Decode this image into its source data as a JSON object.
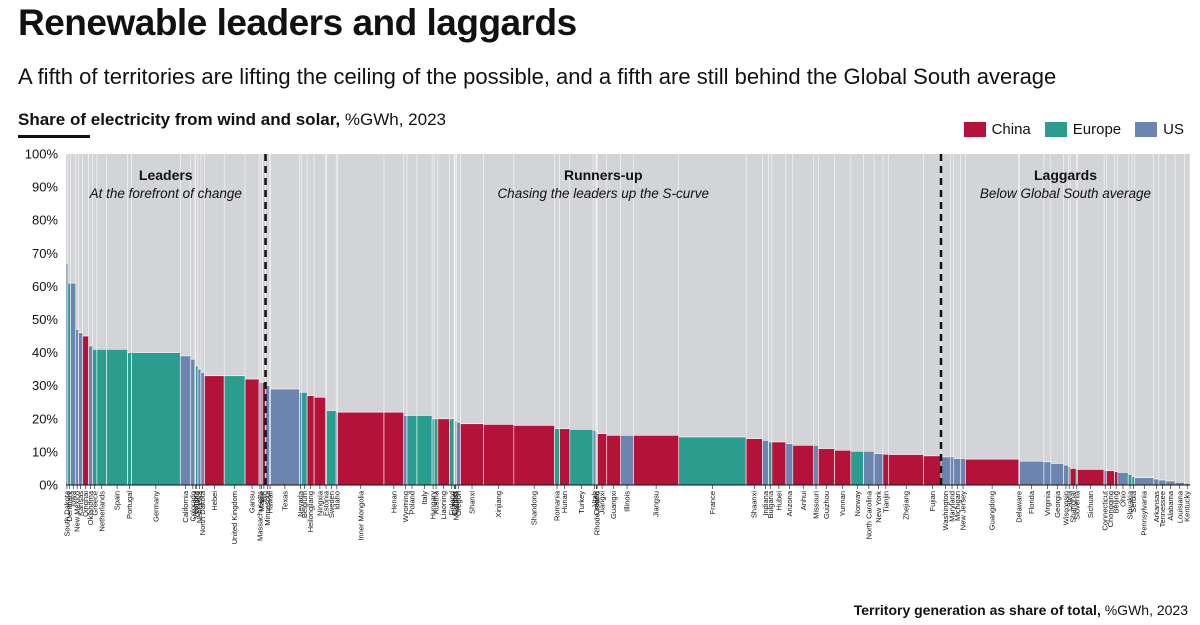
{
  "title": "Renewable leaders and laggards",
  "subtitle": "A fifth of territories are lifting the ceiling of the possible, and a fifth are still behind the Global South average",
  "heading_bold": "Share of electricity from wind and solar,",
  "heading_rest": " %GWh, 2023",
  "footer_bold": "Territory generation as share of total,",
  "footer_rest": " %GWh, 2023",
  "legend": [
    {
      "label": "China",
      "color": "#b5123a"
    },
    {
      "label": "Europe",
      "color": "#2a9d8f"
    },
    {
      "label": "US",
      "color": "#6b84b0"
    }
  ],
  "groups": [
    {
      "name": "Leaders",
      "desc": "At the forefront of change"
    },
    {
      "name": "Runners-up",
      "desc": "Chasing the leaders up the S-curve"
    },
    {
      "name": "Laggards",
      "desc": "Below Global South average"
    }
  ],
  "chart_data": {
    "type": "bar",
    "xlabel": "Territory generation as share of total, %GWh, 2023",
    "ylabel": "Share of electricity from wind and solar, %GWh, 2023",
    "ylim": [
      0,
      100
    ],
    "yticks": [
      "0%",
      "10%",
      "20%",
      "30%",
      "40%",
      "50%",
      "60%",
      "70%",
      "80%",
      "90%",
      "100%"
    ],
    "boundaries_after": [
      "Jilin",
      "Fujian"
    ],
    "series": [
      {
        "name": "South Dakota",
        "region": "US",
        "value": 67,
        "share": 0.08
      },
      {
        "name": "Denmark",
        "region": "Europe",
        "value": 61,
        "share": 0.12
      },
      {
        "name": "Iowa",
        "region": "US",
        "value": 61,
        "share": 0.22
      },
      {
        "name": "New Mexico",
        "region": "US",
        "value": 47,
        "share": 0.12
      },
      {
        "name": "Kansas",
        "region": "US",
        "value": 46,
        "share": 0.18
      },
      {
        "name": "Qinghai",
        "region": "China",
        "value": 45,
        "share": 0.25
      },
      {
        "name": "Oklahoma",
        "region": "US",
        "value": 42,
        "share": 0.18
      },
      {
        "name": "Greece",
        "region": "Europe",
        "value": 41,
        "share": 0.18
      },
      {
        "name": "Netherlands",
        "region": "Europe",
        "value": 41,
        "share": 0.42
      },
      {
        "name": "Spain",
        "region": "Europe",
        "value": 41,
        "share": 0.9
      },
      {
        "name": "Portugal",
        "region": "Europe",
        "value": 40,
        "share": 0.17
      },
      {
        "name": "Germany",
        "region": "Europe",
        "value": 40,
        "share": 2.1
      },
      {
        "name": "California",
        "region": "US",
        "value": 39,
        "share": 0.45
      },
      {
        "name": "Colorado",
        "region": "US",
        "value": 38,
        "share": 0.18
      },
      {
        "name": "Vermont",
        "region": "US",
        "value": 37,
        "share": 0.03
      },
      {
        "name": "Ireland",
        "region": "Europe",
        "value": 36,
        "share": 0.1
      },
      {
        "name": "Nebraska",
        "region": "US",
        "value": 35,
        "share": 0.13
      },
      {
        "name": "North Dakota",
        "region": "US",
        "value": 34,
        "share": 0.15
      },
      {
        "name": "Hebei",
        "region": "China",
        "value": 33,
        "share": 0.85
      },
      {
        "name": "United Kingdom",
        "region": "Europe",
        "value": 33,
        "share": 0.9
      },
      {
        "name": "Gansu",
        "region": "China",
        "value": 32,
        "share": 0.6
      },
      {
        "name": "Massachusetts",
        "region": "US",
        "value": 31,
        "share": 0.08
      },
      {
        "name": "Maine",
        "region": "US",
        "value": 31,
        "share": 0.06
      },
      {
        "name": "Jilin",
        "region": "China",
        "value": 31,
        "share": 0.14
      },
      {
        "name": "Minnesota",
        "region": "US",
        "value": 30,
        "share": 0.18
      },
      {
        "name": "Hawaii",
        "region": "US",
        "value": 29,
        "share": 0.03
      },
      {
        "name": "Texas",
        "region": "US",
        "value": 29,
        "share": 1.25
      },
      {
        "name": "Nevada",
        "region": "US",
        "value": 28,
        "share": 0.1
      },
      {
        "name": "Belgium",
        "region": "Europe",
        "value": 28,
        "share": 0.23
      },
      {
        "name": "Heilongjiang",
        "region": "China",
        "value": 27,
        "share": 0.3
      },
      {
        "name": "Ningxia",
        "region": "China",
        "value": 26.5,
        "share": 0.5
      },
      {
        "name": "Estonia",
        "region": "Europe",
        "value": 26,
        "share": 0.03
      },
      {
        "name": "Sweden",
        "region": "Europe",
        "value": 22.5,
        "share": 0.42
      },
      {
        "name": "Idaho",
        "region": "US",
        "value": 22,
        "share": 0.06
      },
      {
        "name": "Inner Mongolia",
        "region": "China",
        "value": 22,
        "share": 2.0
      },
      {
        "name": "Henan",
        "region": "China",
        "value": 22,
        "share": 0.85
      },
      {
        "name": "Wyoming",
        "region": "US",
        "value": 21,
        "share": 0.14
      },
      {
        "name": "Poland",
        "region": "Europe",
        "value": 21,
        "share": 0.43
      },
      {
        "name": "Italy",
        "region": "Europe",
        "value": 21,
        "share": 0.65
      },
      {
        "name": "Hungary",
        "region": "Europe",
        "value": 20,
        "share": 0.09
      },
      {
        "name": "Austria",
        "region": "Europe",
        "value": 20,
        "share": 0.16
      },
      {
        "name": "Liaoning",
        "region": "China",
        "value": 20,
        "share": 0.5
      },
      {
        "name": "Finland",
        "region": "Europe",
        "value": 20,
        "share": 0.2
      },
      {
        "name": "Tibet",
        "region": "China",
        "value": 19.5,
        "share": 0.03
      },
      {
        "name": "Cyprus",
        "region": "Europe",
        "value": 19.5,
        "share": 0.01
      },
      {
        "name": "Montana",
        "region": "US",
        "value": 19.5,
        "share": 0.07
      },
      {
        "name": "Oregon",
        "region": "US",
        "value": 19,
        "share": 0.16
      },
      {
        "name": "Shanxi",
        "region": "China",
        "value": 18.5,
        "share": 1.0
      },
      {
        "name": "Xinjiang",
        "region": "China",
        "value": 18.3,
        "share": 1.3
      },
      {
        "name": "Shandong",
        "region": "China",
        "value": 18,
        "share": 1.75
      },
      {
        "name": "Romania",
        "region": "Europe",
        "value": 17,
        "share": 0.22
      },
      {
        "name": "Hunan",
        "region": "China",
        "value": 17,
        "share": 0.44
      },
      {
        "name": "Turkey",
        "region": "Europe",
        "value": 16.8,
        "share": 1.0
      },
      {
        "name": "Utah",
        "region": "US",
        "value": 16.5,
        "share": 0.12
      },
      {
        "name": "Croatia",
        "region": "Europe",
        "value": 16.2,
        "share": 0.04
      },
      {
        "name": "Rhode Island",
        "region": "US",
        "value": 16,
        "share": 0.03
      },
      {
        "name": "Jiangxi",
        "region": "China",
        "value": 15.5,
        "share": 0.4
      },
      {
        "name": "Guangxi",
        "region": "China",
        "value": 15,
        "share": 0.6
      },
      {
        "name": "Illinois",
        "region": "US",
        "value": 15,
        "share": 0.55
      },
      {
        "name": "Jiangsu",
        "region": "China",
        "value": 15,
        "share": 1.95
      },
      {
        "name": "France",
        "region": "Europe",
        "value": 14.5,
        "share": 2.9
      },
      {
        "name": "Shaanxi",
        "region": "China",
        "value": 14,
        "share": 0.7
      },
      {
        "name": "Indiana",
        "region": "US",
        "value": 13.5,
        "share": 0.27
      },
      {
        "name": "Bulgaria",
        "region": "Europe",
        "value": 13,
        "share": 0.14
      },
      {
        "name": "Hubei",
        "region": "China",
        "value": 13,
        "share": 0.6
      },
      {
        "name": "Arizona",
        "region": "US",
        "value": 12.5,
        "share": 0.3
      },
      {
        "name": "Anhui",
        "region": "China",
        "value": 12,
        "share": 0.9
      },
      {
        "name": "Missouri",
        "region": "US",
        "value": 12,
        "share": 0.2
      },
      {
        "name": "Guizhou",
        "region": "China",
        "value": 11,
        "share": 0.7
      },
      {
        "name": "Yunnan",
        "region": "China",
        "value": 10.5,
        "share": 0.7
      },
      {
        "name": "Norway",
        "region": "Europe",
        "value": 10.2,
        "share": 0.55
      },
      {
        "name": "North Carolina",
        "region": "US",
        "value": 10.2,
        "share": 0.45
      },
      {
        "name": "New York",
        "region": "US",
        "value": 9.5,
        "share": 0.38
      },
      {
        "name": "Tianjin",
        "region": "China",
        "value": 9.3,
        "share": 0.25
      },
      {
        "name": "Zhejiang",
        "region": "China",
        "value": 9.2,
        "share": 1.5
      },
      {
        "name": "Fujian",
        "region": "China",
        "value": 8.8,
        "share": 0.75
      },
      {
        "name": "Washington",
        "region": "US",
        "value": 8.5,
        "share": 0.4
      },
      {
        "name": "Maryland",
        "region": "US",
        "value": 8.5,
        "share": 0.15
      },
      {
        "name": "Michigan",
        "region": "US",
        "value": 8,
        "share": 0.3
      },
      {
        "name": "New Jersey",
        "region": "US",
        "value": 8,
        "share": 0.2
      },
      {
        "name": "Guangdong",
        "region": "China",
        "value": 7.8,
        "share": 2.3
      },
      {
        "name": "Delaware",
        "region": "US",
        "value": 7.5,
        "share": 0.03
      },
      {
        "name": "Florida",
        "region": "US",
        "value": 7.2,
        "share": 1.05
      },
      {
        "name": "Virginia",
        "region": "US",
        "value": 7,
        "share": 0.3
      },
      {
        "name": "Georgia",
        "region": "US",
        "value": 6.5,
        "share": 0.55
      },
      {
        "name": "Wisconsin",
        "region": "US",
        "value": 6,
        "share": 0.2
      },
      {
        "name": "Latvia",
        "region": "Europe",
        "value": 5.5,
        "share": 0.08
      },
      {
        "name": "Shanghai",
        "region": "China",
        "value": 5,
        "share": 0.26
      },
      {
        "name": "Slovenia",
        "region": "Europe",
        "value": 4.8,
        "share": 0.05
      },
      {
        "name": "Sichuan",
        "region": "China",
        "value": 4.7,
        "share": 1.15
      },
      {
        "name": "Connecticut",
        "region": "US",
        "value": 4.5,
        "share": 0.1
      },
      {
        "name": "Chongqing",
        "region": "China",
        "value": 4.3,
        "share": 0.35
      },
      {
        "name": "Beijing",
        "region": "China",
        "value": 4,
        "share": 0.14
      },
      {
        "name": "Ohio",
        "region": "US",
        "value": 3.8,
        "share": 0.45
      },
      {
        "name": "Slovakia",
        "region": "Europe",
        "value": 3.2,
        "share": 0.16
      },
      {
        "name": "Serbia",
        "region": "Europe",
        "value": 2.5,
        "share": 0.12
      },
      {
        "name": "Pennsylvania",
        "region": "US",
        "value": 2.2,
        "share": 0.82
      },
      {
        "name": "Arkansas",
        "region": "US",
        "value": 1.8,
        "share": 0.22
      },
      {
        "name": "Tennessee",
        "region": "US",
        "value": 1.5,
        "share": 0.3
      },
      {
        "name": "Alabama",
        "region": "US",
        "value": 1.2,
        "share": 0.4
      },
      {
        "name": "Louisiana",
        "region": "US",
        "value": 0.8,
        "share": 0.4
      },
      {
        "name": "Kentucky",
        "region": "US",
        "value": 0.5,
        "share": 0.24
      }
    ]
  }
}
